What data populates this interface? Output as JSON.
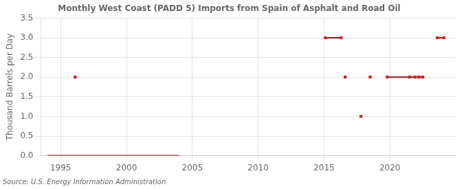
{
  "chart_data": {
    "type": "scatter",
    "title": "Monthly West Coast (PADD 5) Imports from Spain of Asphalt and Road Oil",
    "ylabel": "Thousand Barrels per Day",
    "annotation": "Source: U.S. Energy Information Administration",
    "xlim": [
      1993.5,
      2025.0
    ],
    "ylim": [
      0,
      3.5
    ],
    "xticks": [
      1995,
      2000,
      2005,
      2010,
      2015,
      2020
    ],
    "yticks": [
      {
        "value": 0.0,
        "label": "0.0"
      },
      0.5,
      {
        "value": 1.0,
        "label": "1.0"
      },
      1.5,
      {
        "value": 2.0,
        "label": "2.0"
      },
      2.5,
      {
        "value": 3.0,
        "label": "3.0"
      },
      3.5
    ],
    "grid": true,
    "series": [
      {
        "type": "line",
        "color": "#8b1a1a",
        "x": [
          1994.0,
          2004.0
        ],
        "values": [
          0.0,
          0.0
        ]
      },
      {
        "type": "line",
        "color": "#8b1a1a",
        "x": [
          2015.1,
          2016.3
        ],
        "values": [
          3.0,
          3.0
        ]
      },
      {
        "type": "line",
        "color": "#8b1a1a",
        "x": [
          2019.8,
          2022.5
        ],
        "values": [
          2.0,
          2.0
        ]
      },
      {
        "type": "line",
        "color": "#8b1a1a",
        "x": [
          2023.6,
          2024.1
        ],
        "values": [
          3.0,
          3.0
        ]
      },
      {
        "type": "scatter",
        "marker": "square",
        "color": "#cc2222",
        "x": [
          1996.1,
          2015.1,
          2016.3,
          2016.6,
          2017.8,
          2018.5,
          2019.8,
          2021.5,
          2021.9,
          2022.2,
          2022.5,
          2023.6,
          2024.1
        ],
        "values": [
          2.0,
          3.0,
          3.0,
          2.0,
          1.0,
          2.0,
          2.0,
          2.0,
          2.0,
          2.0,
          2.0,
          3.0,
          3.0
        ]
      }
    ]
  }
}
